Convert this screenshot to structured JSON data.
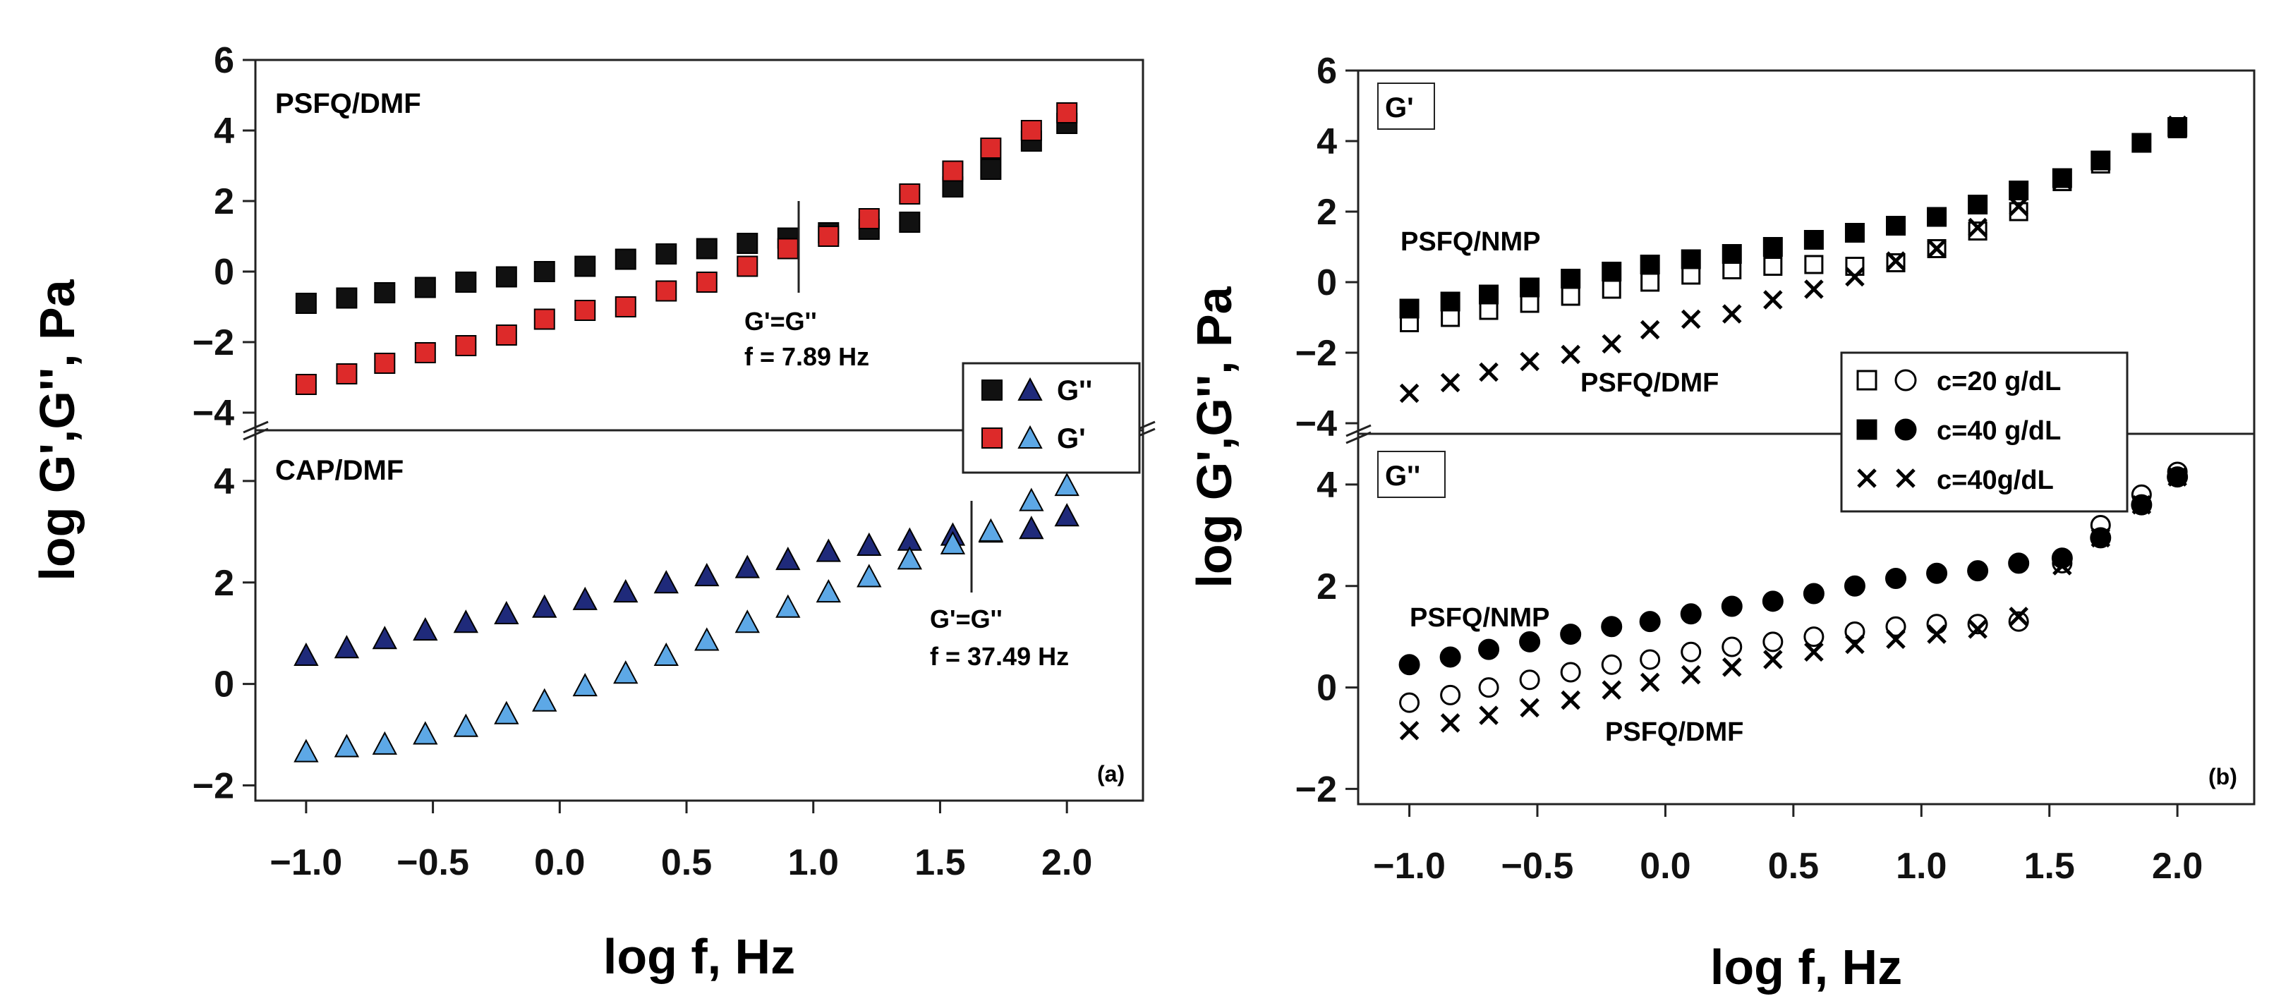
{
  "chart_data": [
    {
      "type": "scatter",
      "panel_label": "(a)",
      "xlabel": "log f, Hz",
      "ylabel": "log G',G'', Pa",
      "xlim": [
        -1.2,
        2.3
      ],
      "x_ticks": [
        "−1.0",
        "−0.5",
        "0.0",
        "0.5",
        "1.0",
        "1.5",
        "2.0"
      ],
      "x_tick_values": [
        -1.0,
        -0.5,
        0.0,
        0.5,
        1.0,
        1.5,
        2.0
      ],
      "upper": {
        "label": "PSFQ/DMF",
        "ylim": [
          -4.5,
          6
        ],
        "y_ticks": [
          "−4",
          "−2",
          "0",
          "2",
          "4",
          "6"
        ],
        "y_tick_values": [
          -4,
          -2,
          0,
          2,
          4,
          6
        ],
        "x": [
          -1.0,
          -0.84,
          -0.69,
          -0.53,
          -0.37,
          -0.21,
          -0.06,
          0.1,
          0.26,
          0.42,
          0.58,
          0.74,
          0.9,
          1.06,
          1.22,
          1.38,
          1.55,
          1.7,
          1.86,
          2.0
        ],
        "series": [
          {
            "name": "G''",
            "marker": "square",
            "color": "#111111",
            "values": [
              -0.9,
              -0.75,
              -0.6,
              -0.45,
              -0.3,
              -0.15,
              0.0,
              0.15,
              0.35,
              0.5,
              0.65,
              0.8,
              0.95,
              1.1,
              1.2,
              1.4,
              2.4,
              2.9,
              3.7,
              4.2
            ]
          },
          {
            "name": "G'",
            "marker": "square",
            "color": "#dd2a2a",
            "values": [
              -3.2,
              -2.9,
              -2.6,
              -2.3,
              -2.1,
              -1.8,
              -1.35,
              -1.1,
              -1.0,
              -0.55,
              -0.3,
              0.15,
              0.65,
              1.0,
              1.5,
              2.2,
              2.85,
              3.5,
              4.0,
              4.5
            ]
          }
        ],
        "annotation": {
          "line1": "G'=G''",
          "line2": "f = 7.89 Hz",
          "x": 0.9,
          "y": 0.9
        }
      },
      "lower": {
        "label": "CAP/DMF",
        "ylim": [
          -2.3,
          5
        ],
        "y_ticks": [
          "−2",
          "0",
          "2",
          "4"
        ],
        "y_tick_values": [
          -2,
          0,
          2,
          4
        ],
        "x": [
          -1.0,
          -0.84,
          -0.69,
          -0.53,
          -0.37,
          -0.21,
          -0.06,
          0.1,
          0.26,
          0.42,
          0.58,
          0.74,
          0.9,
          1.06,
          1.22,
          1.38,
          1.55,
          1.7,
          1.86,
          2.0
        ],
        "series": [
          {
            "name": "G''",
            "marker": "triangle",
            "color": "#1f2a7a",
            "values": [
              0.55,
              0.7,
              0.88,
              1.05,
              1.2,
              1.37,
              1.5,
              1.65,
              1.8,
              1.98,
              2.12,
              2.28,
              2.44,
              2.6,
              2.72,
              2.82,
              2.92,
              2.98,
              3.05,
              3.3
            ]
          },
          {
            "name": "G'",
            "marker": "triangle",
            "color": "#5da8e6",
            "values": [
              -1.35,
              -1.25,
              -1.2,
              -1.0,
              -0.85,
              -0.6,
              -0.35,
              -0.05,
              0.2,
              0.55,
              0.85,
              1.2,
              1.5,
              1.8,
              2.1,
              2.45,
              2.75,
              3.0,
              3.6,
              3.9
            ]
          }
        ],
        "annotation": {
          "line1": "G'=G''",
          "line2": "f = 37.49 Hz",
          "x": 1.57,
          "y": 2.9
        }
      },
      "legend": {
        "position": "top-right of lower panel",
        "entries": [
          "G''",
          "G'"
        ]
      }
    },
    {
      "type": "scatter",
      "panel_label": "(b)",
      "xlabel": "log f, Hz",
      "ylabel": "log G',G'', Pa",
      "xlim": [
        -1.2,
        2.3
      ],
      "x_ticks": [
        "−1.0",
        "−0.5",
        "0.0",
        "0.5",
        "1.0",
        "1.5",
        "2.0"
      ],
      "x_tick_values": [
        -1.0,
        -0.5,
        0.0,
        0.5,
        1.0,
        1.5,
        2.0
      ],
      "upper": {
        "label": "G'",
        "ylim": [
          -4.3,
          6
        ],
        "y_ticks": [
          "−4",
          "−2",
          "0",
          "2",
          "4",
          "6"
        ],
        "y_tick_values": [
          -4,
          -2,
          0,
          2,
          4,
          6
        ],
        "x": [
          -1.0,
          -0.84,
          -0.69,
          -0.53,
          -0.37,
          -0.21,
          -0.06,
          0.1,
          0.26,
          0.42,
          0.58,
          0.74,
          0.9,
          1.06,
          1.22,
          1.38,
          1.55,
          1.7,
          1.86,
          2.0
        ],
        "series": [
          {
            "name": "PSFQ/NMP c=20 g/dL",
            "marker": "open-square",
            "values": [
              -1.15,
              -1.0,
              -0.8,
              -0.6,
              -0.4,
              -0.2,
              0.0,
              0.2,
              0.35,
              0.45,
              0.5,
              0.45,
              0.55,
              0.95,
              1.45,
              2.0,
              2.85,
              3.35,
              3.95,
              4.35
            ]
          },
          {
            "name": "PSFQ/NMP c=40 g/dL",
            "marker": "filled-square",
            "values": [
              -0.75,
              -0.55,
              -0.35,
              -0.15,
              0.1,
              0.3,
              0.5,
              0.65,
              0.8,
              1.0,
              1.2,
              1.4,
              1.6,
              1.85,
              2.2,
              2.6,
              2.95,
              3.45,
              3.95,
              4.4
            ]
          },
          {
            "name": "PSFQ/DMF c=40g/dL",
            "marker": "cross",
            "values": [
              -3.15,
              -2.85,
              -2.55,
              -2.25,
              -2.05,
              -1.75,
              -1.35,
              -1.05,
              -0.9,
              -0.5,
              -0.2,
              0.15,
              0.6,
              0.95,
              1.55,
              2.15,
              2.9,
              3.45,
              3.95,
              4.45
            ]
          }
        ],
        "labels": [
          "PSFQ/NMP",
          "PSFQ/DMF"
        ]
      },
      "lower": {
        "label": "G''",
        "ylim": [
          -2.3,
          5
        ],
        "y_ticks": [
          "−2",
          "0",
          "2",
          "4"
        ],
        "y_tick_values": [
          -2,
          0,
          2,
          4
        ],
        "x": [
          -1.0,
          -0.84,
          -0.69,
          -0.53,
          -0.37,
          -0.21,
          -0.06,
          0.1,
          0.26,
          0.42,
          0.58,
          0.74,
          0.9,
          1.06,
          1.22,
          1.38,
          1.55,
          1.7,
          1.86,
          2.0
        ],
        "series": [
          {
            "name": "PSFQ/NMP c=20 g/dL",
            "marker": "open-circle",
            "values": [
              -0.3,
              -0.15,
              0.0,
              0.15,
              0.3,
              0.45,
              0.55,
              0.7,
              0.8,
              0.9,
              1.0,
              1.1,
              1.2,
              1.25,
              1.25,
              1.3,
              2.45,
              3.2,
              3.8,
              4.25
            ]
          },
          {
            "name": "PSFQ/NMP c=40 g/dL",
            "marker": "filled-circle",
            "values": [
              0.45,
              0.6,
              0.75,
              0.9,
              1.05,
              1.2,
              1.3,
              1.45,
              1.6,
              1.7,
              1.85,
              2.0,
              2.15,
              2.25,
              2.3,
              2.45,
              2.55,
              2.95,
              3.6,
              4.15
            ]
          },
          {
            "name": "PSFQ/DMF c=40g/dL",
            "marker": "cross",
            "values": [
              -0.85,
              -0.7,
              -0.55,
              -0.4,
              -0.25,
              -0.05,
              0.1,
              0.25,
              0.4,
              0.55,
              0.7,
              0.85,
              0.95,
              1.05,
              1.15,
              1.4,
              2.4,
              2.95,
              3.6,
              4.15
            ]
          }
        ],
        "labels": [
          "PSFQ/NMP",
          "PSFQ/DMF"
        ]
      },
      "legend": {
        "position": "right",
        "entries": [
          "c=20 g/dL",
          "c=40 g/dL",
          "c=40g/dL"
        ]
      }
    }
  ]
}
